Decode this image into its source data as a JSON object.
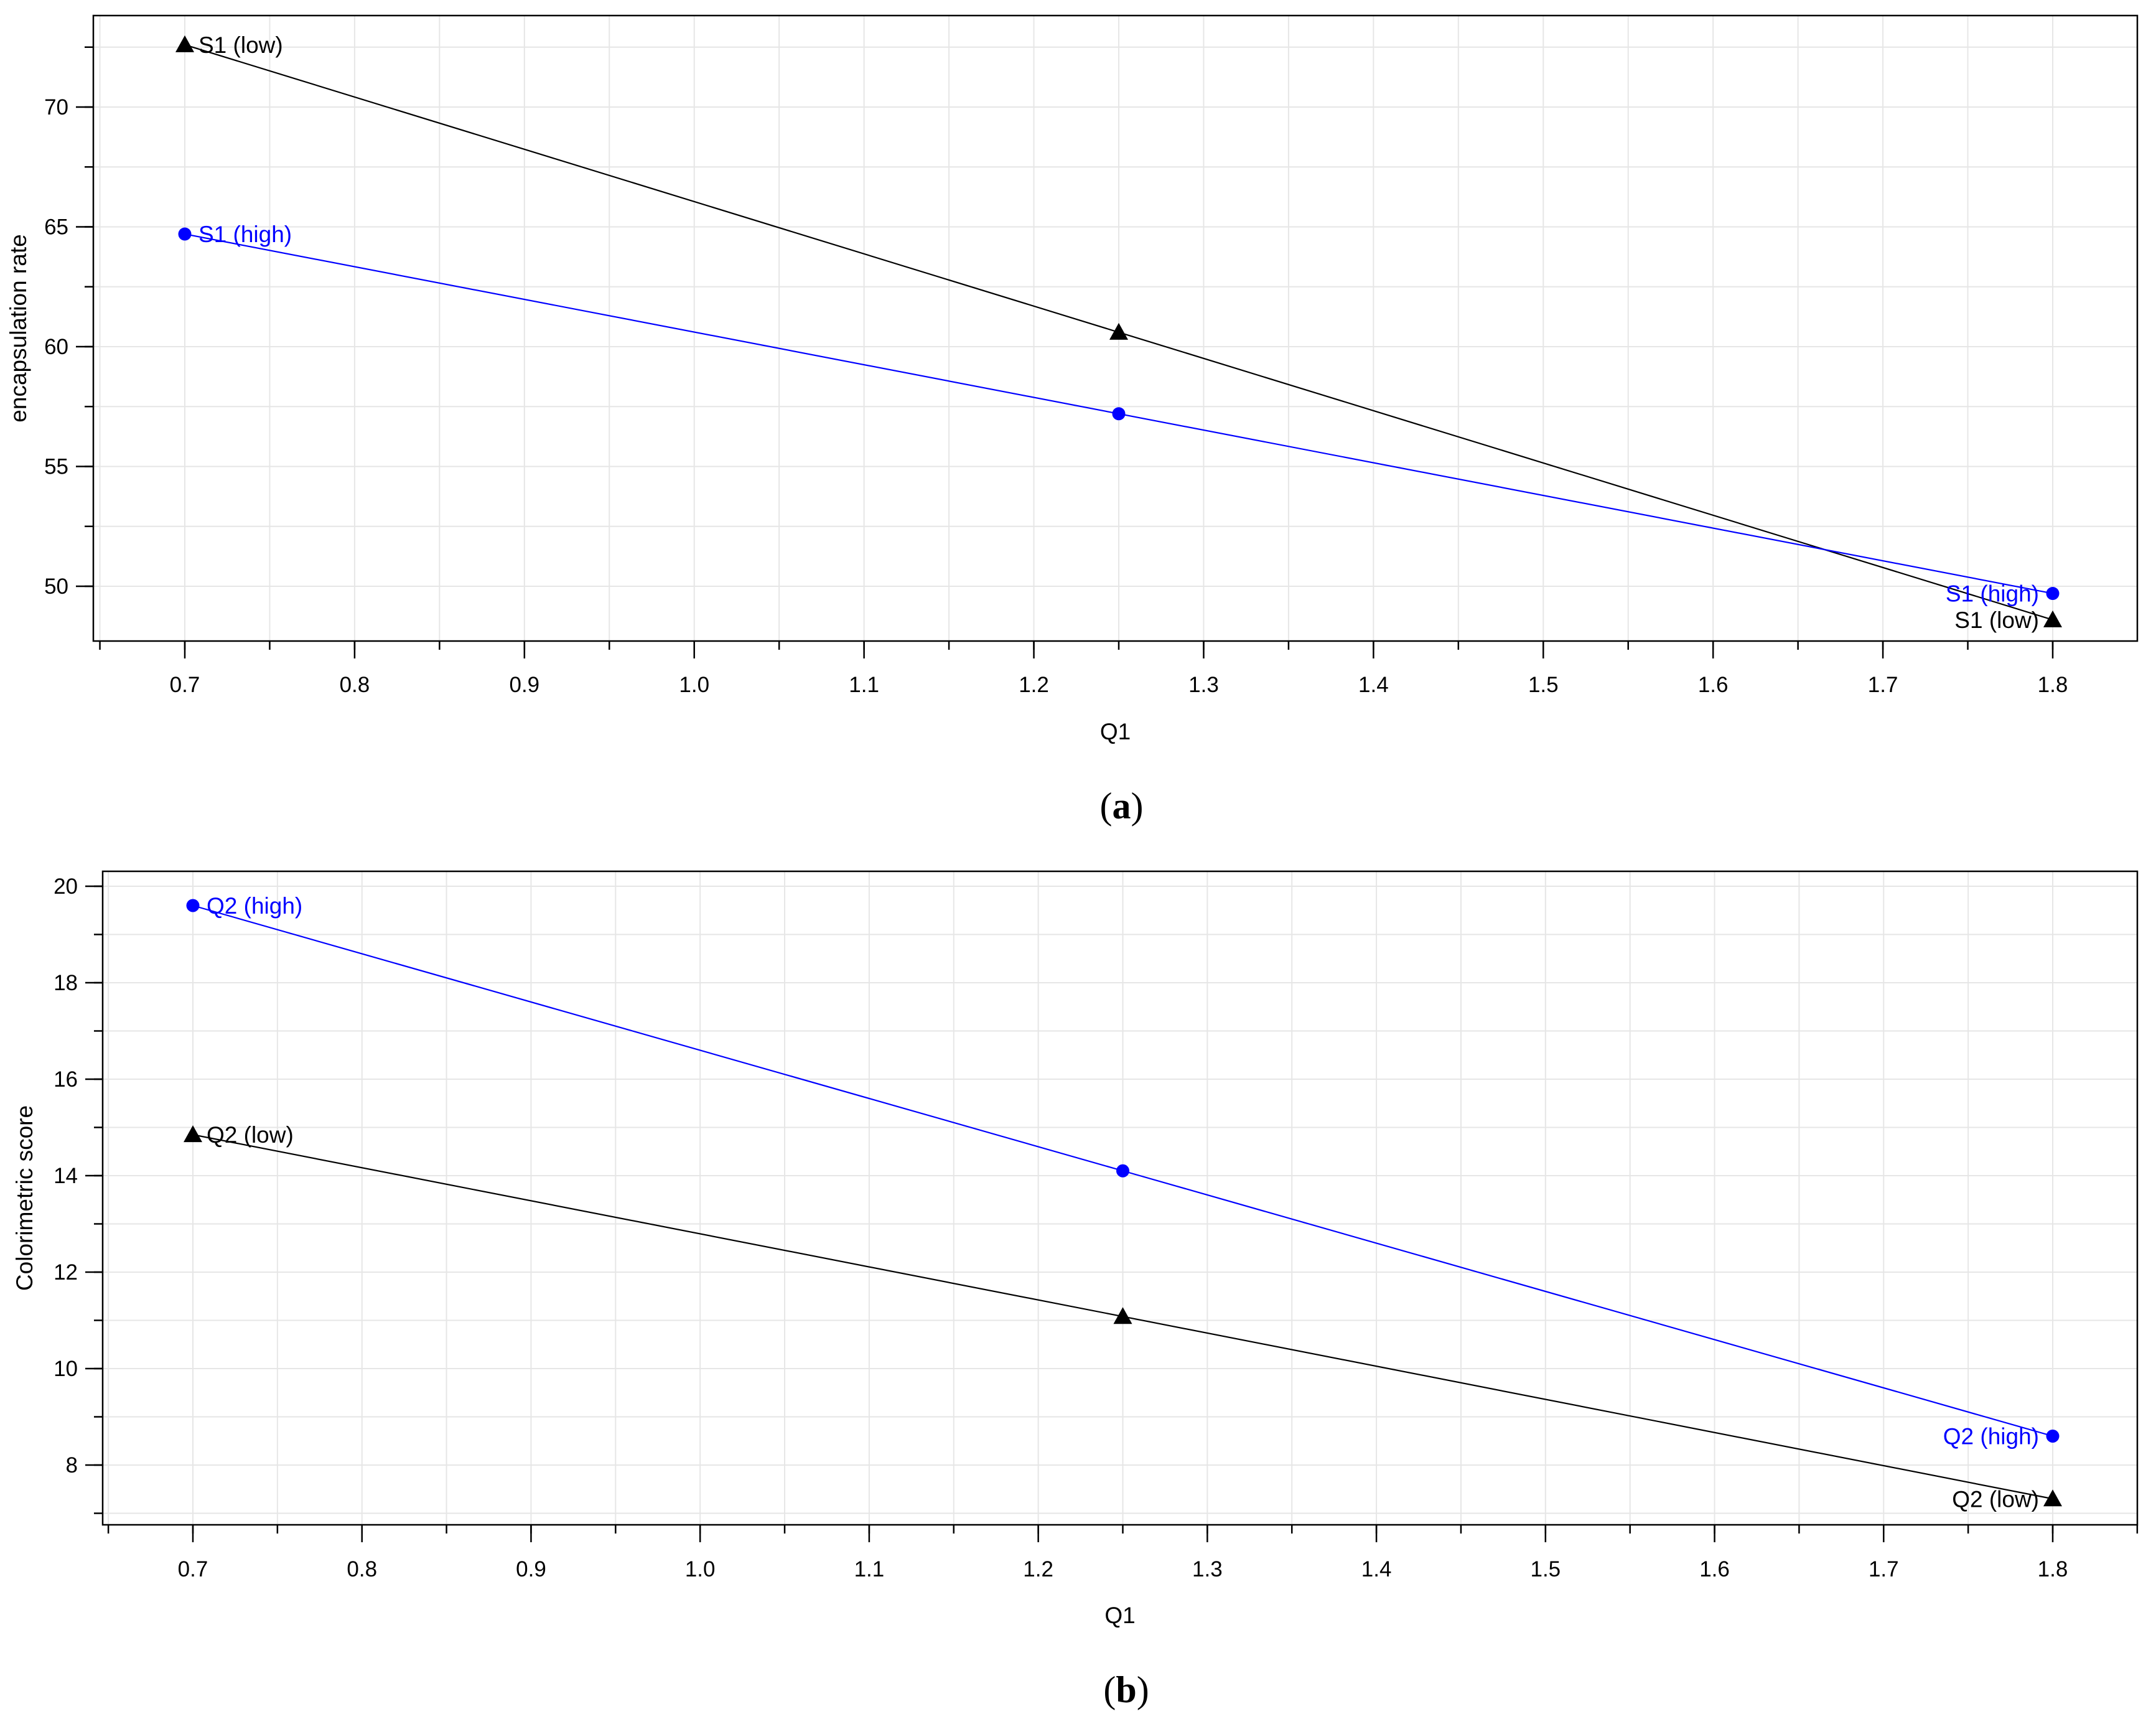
{
  "chart_data": [
    {
      "type": "line",
      "panel_label": "a",
      "xlabel": "Q1",
      "ylabel": "encapsulation rate",
      "xlim": [
        0.65,
        1.85
      ],
      "ylim": [
        47.5,
        73.8
      ],
      "xticks": [
        0.7,
        0.8,
        0.9,
        1.0,
        1.1,
        1.2,
        1.3,
        1.4,
        1.5,
        1.6,
        1.7,
        1.8
      ],
      "xtick_labels": [
        "0.7",
        "0.8",
        "0.9",
        "1.0",
        "1.1",
        "1.2",
        "1.3",
        "1.4",
        "1.5",
        "1.6",
        "1.7",
        "1.8"
      ],
      "yticks": [
        50,
        55,
        60,
        65,
        70
      ],
      "ytick_labels": [
        "50",
        "55",
        "60",
        "65",
        "70"
      ],
      "x_minor_step": 0.05,
      "y_minor_step": 2.5,
      "grid": true,
      "series": [
        {
          "name": "S1 (low)",
          "color": "#000000",
          "marker": "triangle",
          "x": [
            0.7,
            1.25,
            1.8
          ],
          "values": [
            72.6,
            60.6,
            48.6
          ],
          "start_label": "S1 (low)",
          "end_label": "S1 (low)"
        },
        {
          "name": "S1 (high)",
          "color": "#0000ff",
          "marker": "circle",
          "x": [
            0.7,
            1.25,
            1.8
          ],
          "values": [
            64.7,
            57.2,
            49.7
          ],
          "start_label": "S1 (high)",
          "end_label": "S1 (high)"
        }
      ]
    },
    {
      "type": "line",
      "panel_label": "b",
      "xlabel": "Q1",
      "ylabel": "Colorimetric score",
      "xlim": [
        0.65,
        1.85
      ],
      "ylim": [
        7.0,
        20.2
      ],
      "xticks": [
        0.7,
        0.8,
        0.9,
        1.0,
        1.1,
        1.2,
        1.3,
        1.4,
        1.5,
        1.6,
        1.7,
        1.8
      ],
      "xtick_labels": [
        "0.7",
        "0.8",
        "0.9",
        "1.0",
        "1.1",
        "1.2",
        "1.3",
        "1.4",
        "1.5",
        "1.6",
        "1.7",
        "1.8"
      ],
      "yticks": [
        8,
        10,
        12,
        14,
        16,
        18,
        20
      ],
      "ytick_labels": [
        "8",
        "10",
        "12",
        "14",
        "16",
        "18",
        "20"
      ],
      "x_minor_step": 0.05,
      "y_minor_step": 1,
      "grid": true,
      "series": [
        {
          "name": "Q2 (high)",
          "color": "#0000ff",
          "marker": "circle",
          "x": [
            0.7,
            1.25,
            1.8
          ],
          "values": [
            19.6,
            14.1,
            8.6
          ],
          "start_label": "Q2 (high)",
          "end_label": "Q2 (high)"
        },
        {
          "name": "Q2 (low)",
          "color": "#000000",
          "marker": "triangle",
          "x": [
            0.7,
            1.25,
            1.8
          ],
          "values": [
            14.85,
            11.08,
            7.3
          ],
          "start_label": "Q2 (low)",
          "end_label": "Q2 (low)"
        }
      ]
    }
  ]
}
